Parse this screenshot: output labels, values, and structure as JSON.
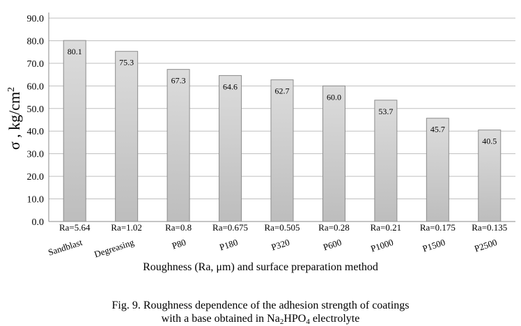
{
  "chart_data": {
    "type": "bar",
    "ra_labels": [
      "Ra=5.64",
      "Ra=1.02",
      "Ra=0.8",
      "Ra=0.675",
      "Ra=0.505",
      "Ra=0.28",
      "Ra=0.21",
      "Ra=0.175",
      "Ra=0.135"
    ],
    "categories": [
      "Sandblast",
      "Degreasing",
      "P80",
      "P180",
      "P320",
      "P600",
      "P1000",
      "P1500",
      "P2500"
    ],
    "values": [
      80.1,
      75.3,
      67.3,
      64.6,
      62.7,
      60.0,
      53.7,
      45.7,
      40.5
    ],
    "data_labels": [
      "80.1",
      "75.3",
      "67.3",
      "64.6",
      "62.7",
      "60.0",
      "53.7",
      "45.7",
      "40.5"
    ],
    "y_ticks": [
      "0.0",
      "10.0",
      "20.0",
      "30.0",
      "40.0",
      "50.0",
      "60.0",
      "70.0",
      "80.0",
      "90.0"
    ],
    "ylim": [
      0,
      90
    ],
    "ylabel": "σ , kg/cm²",
    "xlabel": "Roughness (Ra, μm) and surface preparation method",
    "grid": true,
    "legend": "none",
    "bar_color": "#cfcfcf"
  },
  "caption": {
    "line1": "Fig. 9. Roughness dependence of the adhesion strength of coatings",
    "line2_prefix": "with a base obtained in Na",
    "sub1": "2",
    "mid": "HPO",
    "sub2": "4",
    "line2_suffix": " electrolyte"
  }
}
